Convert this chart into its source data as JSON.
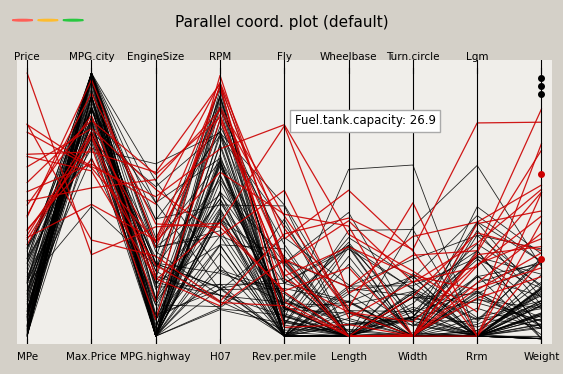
{
  "title": "Parallel coord. plot (default)",
  "top_axes": [
    "Price",
    "MPG.city",
    "EngineSize",
    "RPM",
    "Fly",
    "Wheelbase",
    "Turn.circle",
    "Lgm"
  ],
  "bottom_axes": [
    "MPe",
    "Max.Price",
    "MPG.highway",
    "H07",
    "Rev.per.mile",
    "Length",
    "Width",
    "Rrm",
    "Weight"
  ],
  "annotation_text": "Fuel.tank.capacity: 26.9",
  "bg_color": "#d4d0c8",
  "plot_bg": "#f0eeea",
  "line_color_black": "#000000",
  "line_color_red": "#cc0000",
  "title_color": "#000000",
  "dot_color_black": "#000000",
  "dot_color_red": "#cc0000",
  "n_axes": 9,
  "n_black": 75,
  "n_red": 18,
  "annotation_box_color": "#ffffff",
  "annotation_border": "#aaaaaa"
}
